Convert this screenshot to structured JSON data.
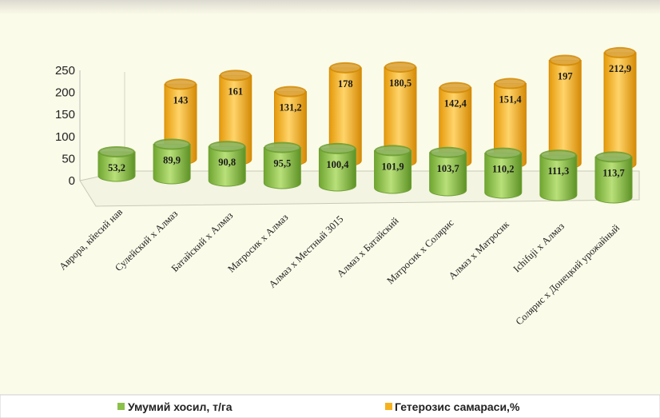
{
  "chart_data": {
    "type": "bar",
    "title": "",
    "xlabel": "",
    "ylabel": "",
    "ylim": [
      0,
      250
    ],
    "yticks": [
      "0",
      "50",
      "100",
      "150",
      "200",
      "250"
    ],
    "categories": [
      "Аврора, кйесий нав",
      "Сулейский  х Алмаз",
      "Батайский х Алмаз",
      "Матросик х Алмаз",
      "Алмаз  х Местный 3015",
      "Алмаз х Батайский",
      "Матросик х Солярис",
      "Алмаз х Матросик",
      "Ichifuji  х Алмаз",
      "Солярис х Донецкий урожайный"
    ],
    "series": [
      {
        "name": "Умумий хосил, т/га",
        "color": "#8cc14a",
        "values": [
          53.2,
          89.9,
          90.8,
          95.5,
          100.4,
          101.9,
          103.7,
          110.2,
          111.3,
          113.7
        ],
        "labels": [
          "53,2",
          "89,9",
          "90,8",
          "95,5",
          "100,4",
          "101,9",
          "103,7",
          "110,2",
          "111,3",
          "113,7"
        ]
      },
      {
        "name": "Гетерозис самараси,%",
        "color": "#f5b21e",
        "values": [
          null,
          143,
          161,
          131.2,
          178,
          180.5,
          142.4,
          151.4,
          197,
          212.9
        ],
        "labels": [
          "",
          "143",
          "161",
          "131,2",
          "178",
          "180,5",
          "142,4",
          "151,4",
          "197",
          "212,9"
        ]
      }
    ],
    "legend_position": "bottom",
    "grid": false
  }
}
